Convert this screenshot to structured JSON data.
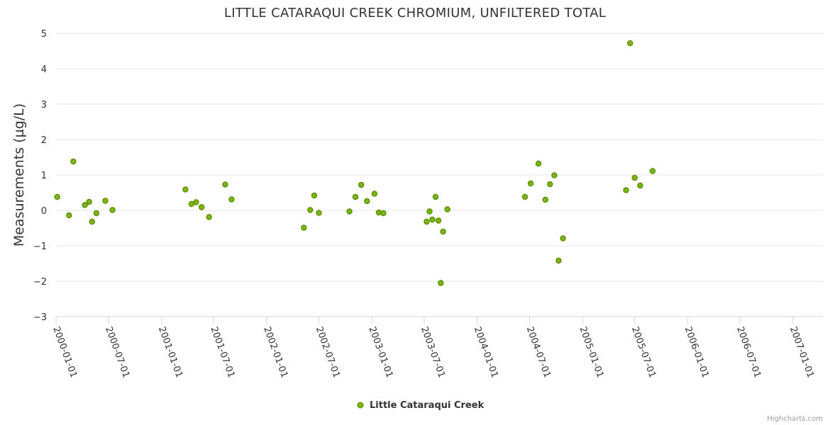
{
  "chart_data": {
    "type": "scatter",
    "title": "LITTLE CATARAQUI CREEK CHROMIUM, UNFILTERED TOTAL",
    "ylabel": "Measurements (µg/L)",
    "xlabel": "",
    "ylim": [
      -3,
      5
    ],
    "yticks": [
      "−3",
      "−2",
      "−1",
      "0",
      "1",
      "2",
      "3",
      "4",
      "5"
    ],
    "xlim": [
      "2000-01-01",
      "2007-04-15"
    ],
    "xticks": [
      "2000-01-01",
      "2000-07-01",
      "2001-01-01",
      "2001-07-01",
      "2002-01-01",
      "2002-07-01",
      "2003-01-01",
      "2003-07-01",
      "2004-01-01",
      "2004-07-01",
      "2005-01-01",
      "2005-07-01",
      "2006-01-01",
      "2006-07-01",
      "2007-01-01"
    ],
    "grid": true,
    "legend": "bottom-center",
    "series": [
      {
        "name": "Little Cataraqui Creek",
        "color": "#7cb518",
        "border": "#5a8a00",
        "points": [
          [
            "2000-01-05",
            0.38
          ],
          [
            "2000-02-15",
            -0.14
          ],
          [
            "2000-03-01",
            1.38
          ],
          [
            "2000-04-10",
            0.15
          ],
          [
            "2000-04-25",
            0.24
          ],
          [
            "2000-05-05",
            -0.32
          ],
          [
            "2000-05-20",
            -0.08
          ],
          [
            "2000-06-20",
            0.27
          ],
          [
            "2000-07-15",
            0.01
          ],
          [
            "2001-03-25",
            0.59
          ],
          [
            "2001-04-15",
            0.18
          ],
          [
            "2001-05-01",
            0.23
          ],
          [
            "2001-05-20",
            0.09
          ],
          [
            "2001-06-15",
            -0.19
          ],
          [
            "2001-08-10",
            0.73
          ],
          [
            "2001-09-01",
            0.31
          ],
          [
            "2002-05-10",
            -0.49
          ],
          [
            "2002-06-01",
            0.01
          ],
          [
            "2002-06-15",
            0.42
          ],
          [
            "2002-07-01",
            -0.07
          ],
          [
            "2002-10-15",
            -0.03
          ],
          [
            "2002-11-05",
            0.38
          ],
          [
            "2002-11-25",
            0.72
          ],
          [
            "2002-12-15",
            0.26
          ],
          [
            "2003-01-10",
            0.47
          ],
          [
            "2003-01-25",
            -0.06
          ],
          [
            "2003-02-10",
            -0.08
          ],
          [
            "2003-07-10",
            -0.32
          ],
          [
            "2003-07-20",
            -0.03
          ],
          [
            "2003-07-30",
            -0.26
          ],
          [
            "2003-08-10",
            0.38
          ],
          [
            "2003-08-20",
            -0.29
          ],
          [
            "2003-08-28",
            -2.05
          ],
          [
            "2003-09-05",
            -0.6
          ],
          [
            "2003-09-20",
            0.03
          ],
          [
            "2004-06-15",
            0.38
          ],
          [
            "2004-07-05",
            0.76
          ],
          [
            "2004-08-01",
            1.32
          ],
          [
            "2004-08-25",
            0.3
          ],
          [
            "2004-09-10",
            0.74
          ],
          [
            "2004-09-25",
            0.99
          ],
          [
            "2004-10-10",
            -1.42
          ],
          [
            "2004-10-25",
            -0.79
          ],
          [
            "2005-06-01",
            0.57
          ],
          [
            "2005-06-15",
            4.72
          ],
          [
            "2005-07-01",
            0.92
          ],
          [
            "2005-07-20",
            0.7
          ],
          [
            "2005-09-01",
            1.11
          ]
        ]
      }
    ]
  },
  "legend": {
    "label": "Little Cataraqui Creek"
  },
  "credits": "Highcharts.com"
}
